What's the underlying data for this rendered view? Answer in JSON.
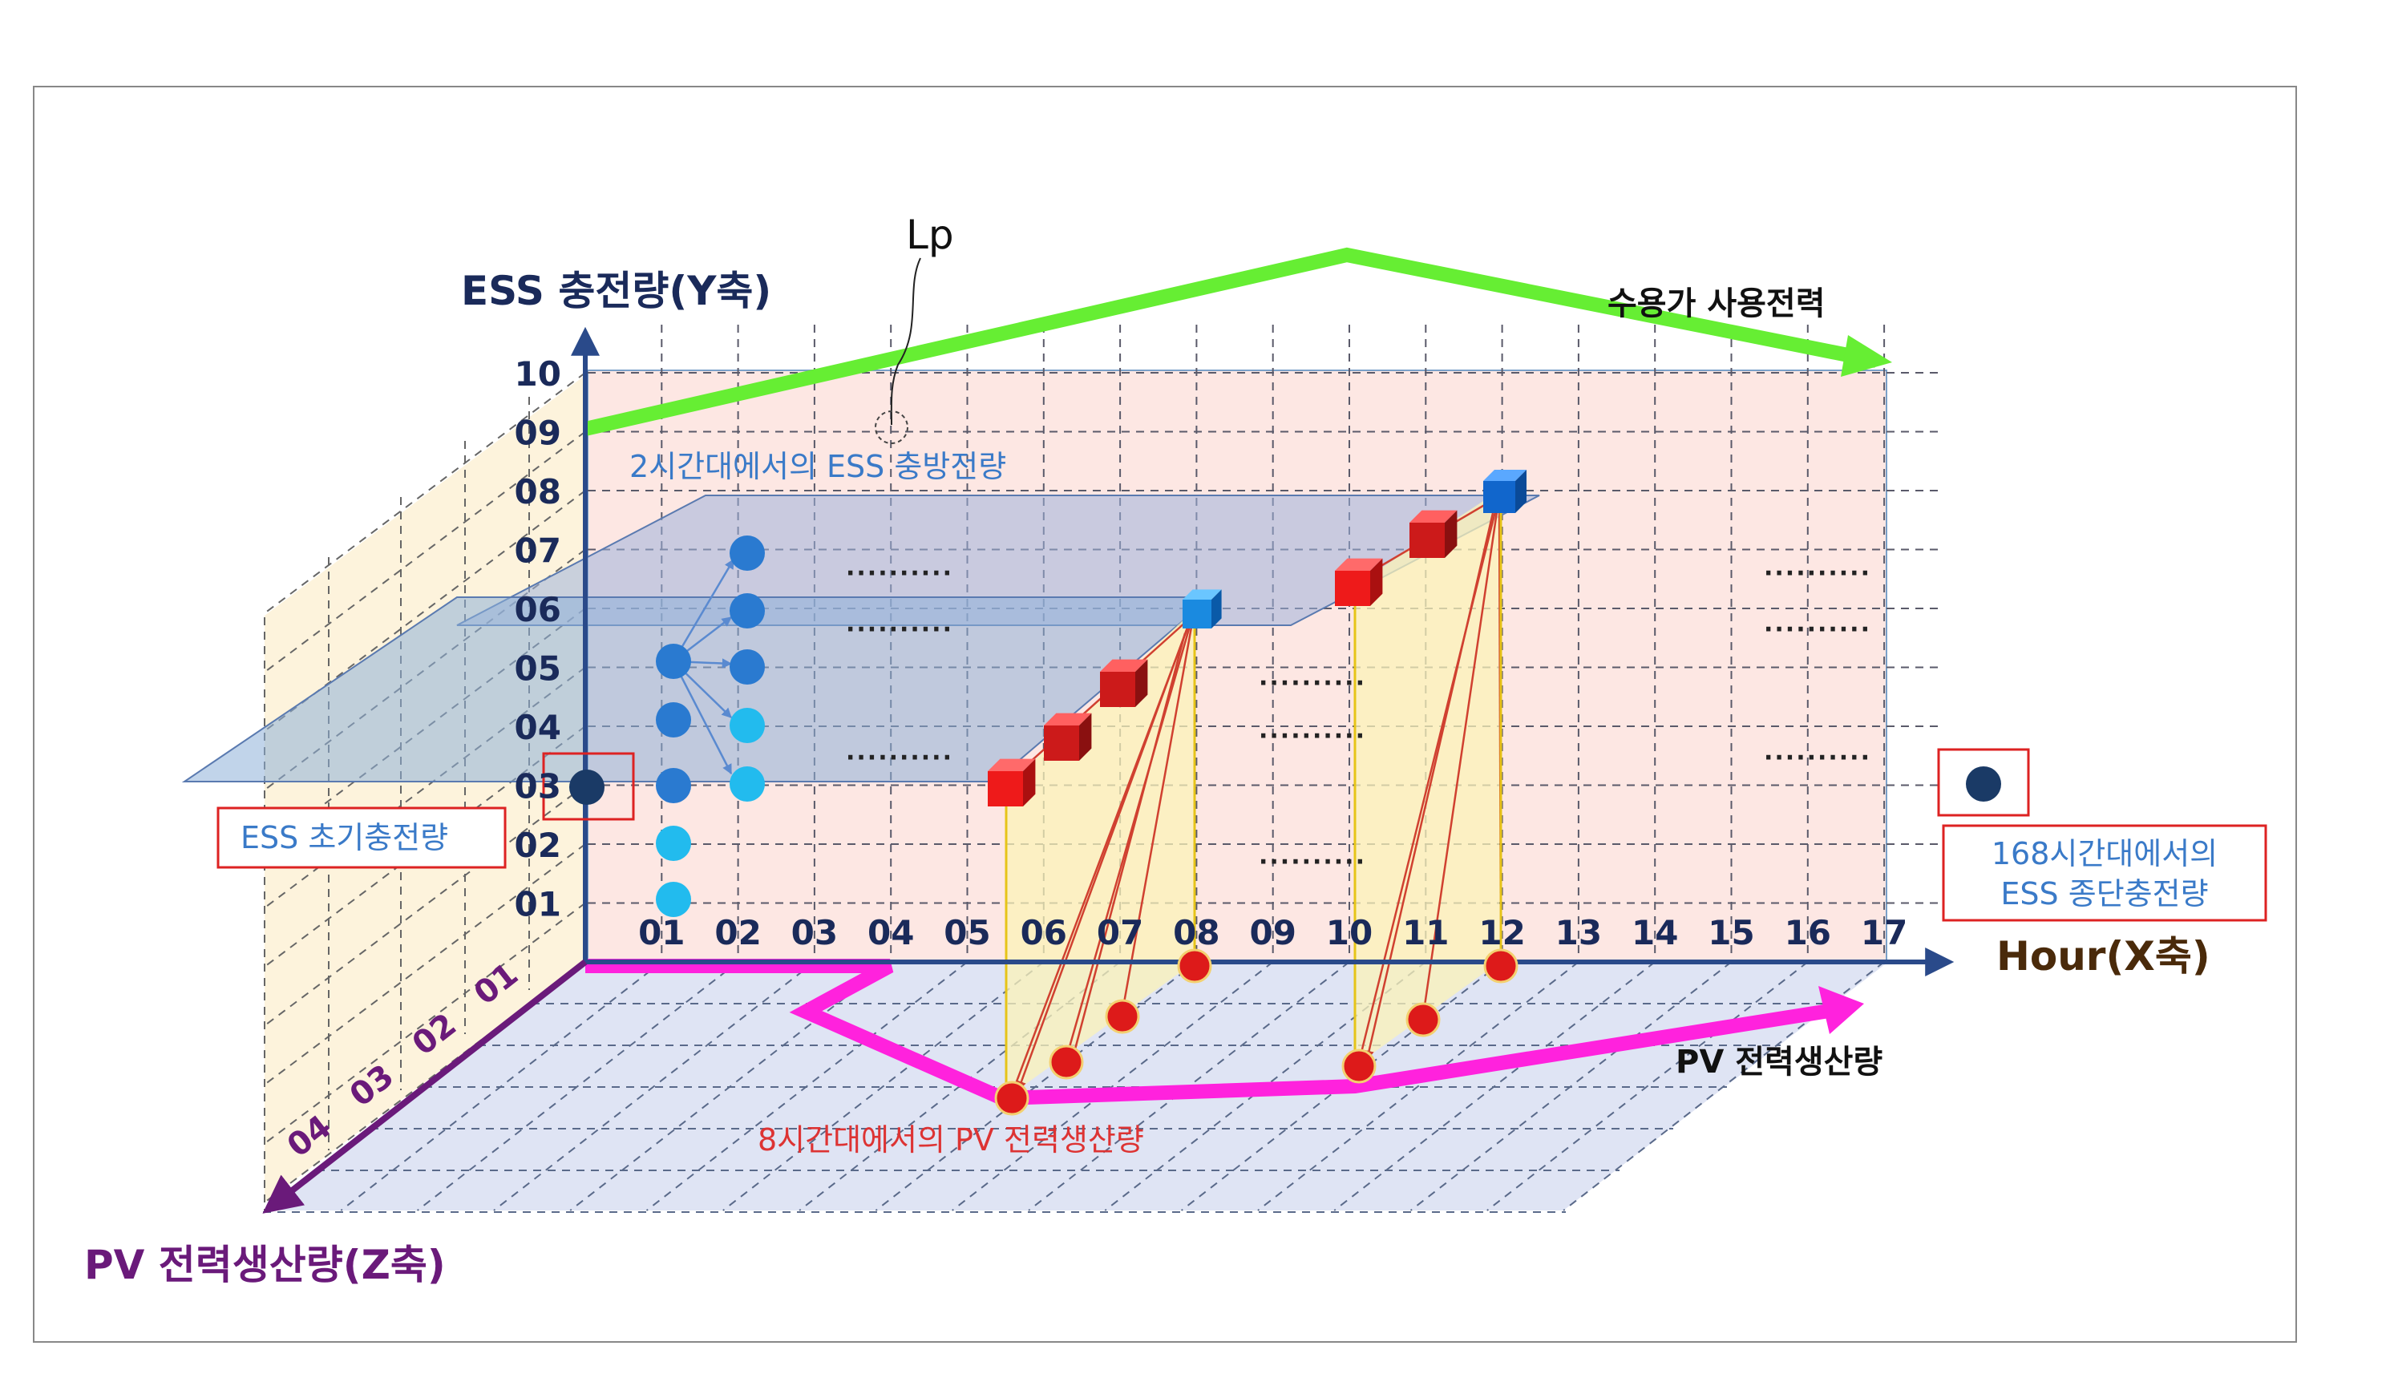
{
  "labels": {
    "y_axis_title": "ESS 충전량(Y축)",
    "x_axis_title": "Hour(X축)",
    "z_axis_title": "PV 전력생산량(Z축)",
    "lp": "Lp",
    "consumer_power": "수용가 사용전력",
    "pv_generation": "PV 전력생산량",
    "plane_2h": "2시간대에서의 ESS 충방전량",
    "pv_8h": "8시간대에서의 PV 전력생산량",
    "initial_charge": "ESS 초기충전량",
    "final_charge_line1": "168시간대에서의",
    "final_charge_line2": "ESS 종단충전량"
  },
  "y_ticks": [
    "10",
    "09",
    "08",
    "07",
    "06",
    "05",
    "04",
    "03",
    "02",
    "01"
  ],
  "x_ticks": [
    "01",
    "02",
    "03",
    "04",
    "05",
    "06",
    "07",
    "08",
    "09",
    "10",
    "11",
    "12",
    "13",
    "14",
    "15",
    "16",
    "17"
  ],
  "z_ticks": [
    "01",
    "02",
    "03",
    "04"
  ],
  "ellipsis": "··········",
  "colors": {
    "green_line": "#66ee33",
    "magenta_line": "#ff22dd",
    "axis_blue": "#2a4a8a",
    "axis_purple": "#6a1a7a",
    "node_blue": "#2a7ad0",
    "node_light": "#22bbee",
    "node_dark": "#1a3a66",
    "cube_red": "#ee2222",
    "cube_blue": "#1166cc",
    "back_panel": "#fde7e3",
    "floor_panel": "#dfe4f4",
    "left_panel": "#fdf2d8"
  }
}
